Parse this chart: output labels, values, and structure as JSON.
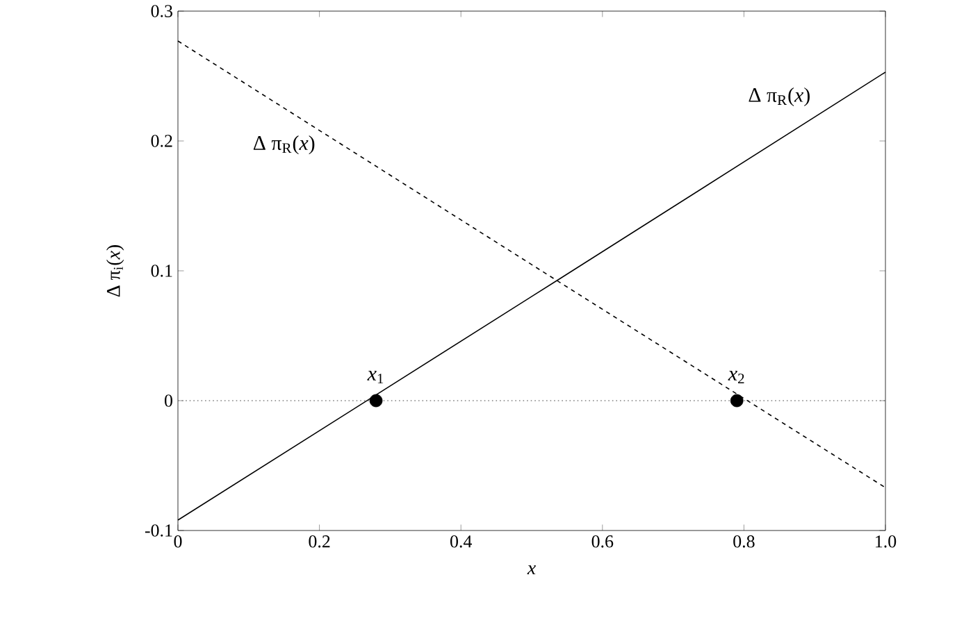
{
  "chart_data": {
    "type": "line",
    "xlabel": "x",
    "ylabel": "Δ π$_{i}$(*x*)",
    "x": [
      0,
      0.54,
      1
    ],
    "series": [
      {
        "name": "Δ π$_{R}$(*x*)",
        "color": "#000000",
        "values": [
          -0.092,
          0.094,
          0.253
        ],
        "line_style": "solid"
      },
      {
        "name": "Δ π$_{R}$(*x*)",
        "color": "#000000",
        "values": [
          0.277,
          0.091,
          -0.067
        ],
        "line_style": "dashed"
      },
      {
        "type": "scatter",
        "color": "#000000",
        "x": [
          0.28,
          0.79
        ],
        "values": [
          0,
          0
        ],
        "marker": "circle"
      }
    ],
    "annotations": [
      {
        "text": "*x*$_{1}$",
        "x": 0.28,
        "y": 0
      },
      {
        "text": "*x*$_{2}$",
        "x": 0.79,
        "y": 0
      }
    ],
    "ref_lines": [
      {
        "axis": "y",
        "value": 0,
        "color": "#808080",
        "line_style": "dotted"
      }
    ],
    "xlim": [
      0,
      1
    ],
    "ylim": [
      -0.1,
      0.3
    ],
    "xticks": [
      0,
      0.2,
      0.4,
      0.6,
      0.8,
      {
        "value": 1,
        "label": "1.0"
      }
    ],
    "yticks": [
      -0.1,
      0,
      0.1,
      0.2,
      0.3
    ],
    "grid": false,
    "legend": false
  }
}
